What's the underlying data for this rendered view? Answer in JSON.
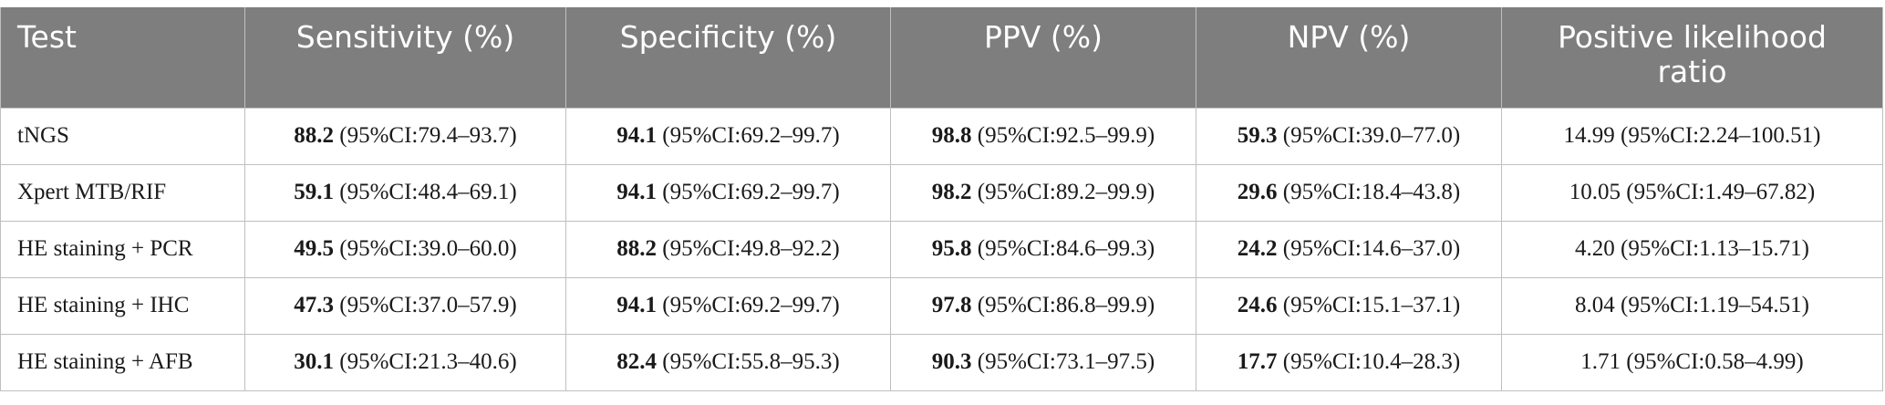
{
  "headers": [
    "Test",
    "Sensitivity (%)",
    "Specificity (%)",
    "PPV (%)",
    "NPV (%)",
    "Positive likelihood ratio"
  ],
  "rows": [
    {
      "test": "tNGS",
      "sens_val": "88.2",
      "sens_ci": " (95%CI:79.4–93.7)",
      "spec_val": "94.1",
      "spec_ci": " (95%CI:69.2–99.7)",
      "ppv_val": "98.8",
      "ppv_ci": " (95%CI:92.5–99.9)",
      "npv_val": "59.3",
      "npv_ci": " (95%CI:39.0–77.0)",
      "plr": "14.99 (95%CI:2.24–100.51)"
    },
    {
      "test": "Xpert MTB/RIF",
      "sens_val": "59.1",
      "sens_ci": " (95%CI:48.4–69.1)",
      "spec_val": "94.1",
      "spec_ci": " (95%CI:69.2–99.7)",
      "ppv_val": "98.2",
      "ppv_ci": " (95%CI:89.2–99.9)",
      "npv_val": "29.6",
      "npv_ci": " (95%CI:18.4–43.8)",
      "plr": "10.05 (95%CI:1.49–67.82)"
    },
    {
      "test": "HE staining + PCR",
      "sens_val": "49.5",
      "sens_ci": " (95%CI:39.0–60.0)",
      "spec_val": "88.2",
      "spec_ci": " (95%CI:49.8–92.2)",
      "ppv_val": "95.8",
      "ppv_ci": " (95%CI:84.6–99.3)",
      "npv_val": "24.2",
      "npv_ci": " (95%CI:14.6–37.0)",
      "plr": "4.20 (95%CI:1.13–15.71)"
    },
    {
      "test": "HE staining + IHC",
      "sens_val": "47.3",
      "sens_ci": " (95%CI:37.0–57.9)",
      "spec_val": "94.1",
      "spec_ci": " (95%CI:69.2–99.7)",
      "ppv_val": "97.8",
      "ppv_ci": " (95%CI:86.8–99.9)",
      "npv_val": "24.6",
      "npv_ci": " (95%CI:15.1–37.1)",
      "plr": "8.04 (95%CI:1.19–54.51)"
    },
    {
      "test": "HE staining + AFB",
      "sens_val": "30.1",
      "sens_ci": " (95%CI:21.3–40.6)",
      "spec_val": "82.4",
      "spec_ci": " (95%CI:55.8–95.3)",
      "ppv_val": "90.3",
      "ppv_ci": " (95%CI:73.1–97.5)",
      "npv_val": "17.7",
      "npv_ci": " (95%CI:10.4–28.3)",
      "plr": "1.71 (95%CI:0.58–4.99)"
    }
  ]
}
